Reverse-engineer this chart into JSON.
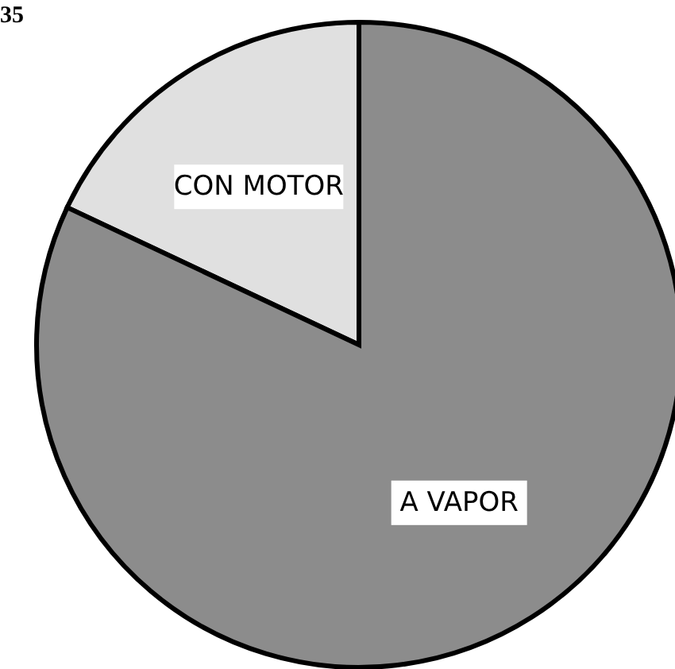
{
  "chart_data": {
    "type": "pie",
    "categories": [
      "CON MOTOR",
      "A VAPOR"
    ],
    "values": [
      18,
      82
    ],
    "colors": [
      "#e0e0e0",
      "#8c8c8c"
    ],
    "annotations": [
      "35"
    ]
  }
}
